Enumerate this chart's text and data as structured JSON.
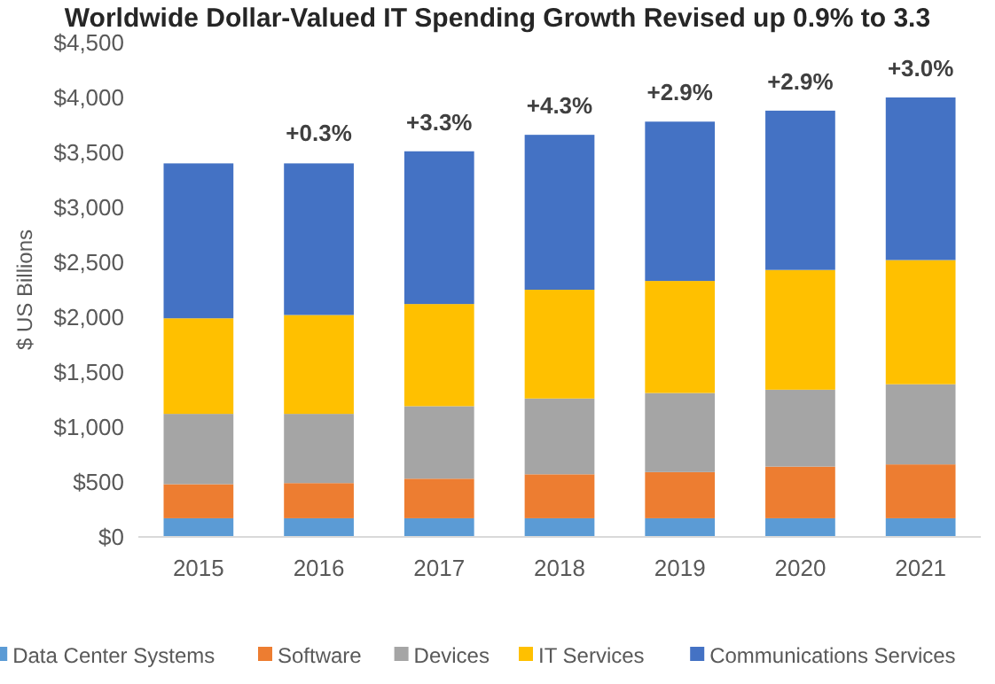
{
  "chart_data": {
    "type": "bar",
    "stacked": true,
    "title": "Worldwide Dollar-Valued IT Spending Growth Revised up 0.9% to 3.3",
    "ylabel": "$ US Billions",
    "categories": [
      "2015",
      "2016",
      "2017",
      "2018",
      "2019",
      "2020",
      "2021"
    ],
    "series": [
      {
        "name": "Data Center Systems",
        "color": "#5b9bd5",
        "values": [
          170,
          170,
          170,
          170,
          170,
          170,
          170
        ]
      },
      {
        "name": "Software",
        "color": "#ed7d31",
        "values": [
          310,
          320,
          360,
          400,
          420,
          470,
          490
        ]
      },
      {
        "name": "Devices",
        "color": "#a5a5a5",
        "values": [
          640,
          630,
          660,
          690,
          720,
          700,
          730
        ]
      },
      {
        "name": "IT Services",
        "color": "#ffc000",
        "values": [
          870,
          900,
          930,
          990,
          1020,
          1090,
          1130
        ]
      },
      {
        "name": "Communications Services",
        "color": "#4472c4",
        "values": [
          1410,
          1380,
          1390,
          1410,
          1450,
          1450,
          1480
        ]
      }
    ],
    "ylim": [
      0,
      4500
    ],
    "yticks": [
      {
        "value": 0,
        "label": "$0"
      },
      {
        "value": 500,
        "label": "$500"
      },
      {
        "value": 1000,
        "label": "$1,000"
      },
      {
        "value": 1500,
        "label": "$1,500"
      },
      {
        "value": 2000,
        "label": "$2,000"
      },
      {
        "value": 2500,
        "label": "$2,500"
      },
      {
        "value": 3000,
        "label": "$3,000"
      },
      {
        "value": 3500,
        "label": "$3,500"
      },
      {
        "value": 4000,
        "label": "$4,000"
      },
      {
        "value": 4500,
        "label": "$4,500"
      }
    ],
    "annotations": [
      {
        "text": "+0.3%",
        "x": "2016",
        "y": 3410
      },
      {
        "text": "+3.3%",
        "x": "2017",
        "y": 3510
      },
      {
        "text": "+4.3%",
        "x": "2018",
        "y": 3660
      },
      {
        "text": "+2.9%",
        "x": "2019",
        "y": 3780
      },
      {
        "text": "+2.9%",
        "x": "2020",
        "y": 3880
      },
      {
        "text": "+3.0%",
        "x": "2021",
        "y": 4000
      }
    ],
    "grid": false,
    "legend": "bottom"
  }
}
